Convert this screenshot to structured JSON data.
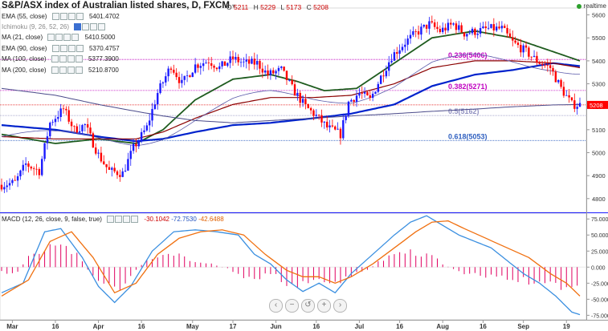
{
  "header": {
    "title": "S&P/ASX index of Australian listed shares, D, FXCM",
    "ohlc": [
      {
        "k": "O",
        "v": "5211"
      },
      {
        "k": "H",
        "v": "5229"
      },
      {
        "k": "L",
        "v": "5173"
      },
      {
        "k": "C",
        "v": "5208"
      }
    ],
    "realtime": "realtime"
  },
  "indicators": [
    {
      "label": "EMA (55, close)",
      "value": "5401.4702",
      "color": "#1f5c1f"
    },
    {
      "label": "Ichimoku (9, 26, 52, 26)",
      "value": "",
      "color": "#888888"
    },
    {
      "label": "MA (21, close)",
      "value": "5410.5000",
      "color": "#1a1a1a"
    },
    {
      "label": "EMA (90, close)",
      "value": "5370.4757",
      "color": "#8b0000"
    },
    {
      "label": "MA (100, close)",
      "value": "5377.3900",
      "color": "#0022cc"
    },
    {
      "label": "MA (200, close)",
      "value": "5210.8700",
      "color": "#1a1a1a"
    }
  ],
  "macd": {
    "label": "MACD (12, 26, close, 9, false, true)",
    "values": [
      {
        "v": "-30.1042",
        "color": "#cc0000"
      },
      {
        "v": "-72.7530",
        "color": "#1f4fbf"
      },
      {
        "v": "-42.6488",
        "color": "#e06000"
      }
    ]
  },
  "chart_data": {
    "type": "candlestick",
    "price_axis": {
      "ticks": [
        4800,
        4900,
        5000,
        5100,
        5200,
        5300,
        5400,
        5500,
        5600
      ],
      "range": [
        4740,
        5630
      ]
    },
    "macd_axis": {
      "ticks": [
        "75.000",
        "50.000",
        "25.000",
        "0.000",
        "-25.000",
        "-50.000",
        "-75.000"
      ],
      "tick_values": [
        75,
        50,
        25,
        0,
        -25,
        -50,
        -75
      ],
      "range": [
        -82,
        84
      ]
    },
    "x_labels": [
      "Mar",
      "16",
      "Apr",
      "16",
      "May",
      "17",
      "Jun",
      "16",
      "Jul",
      "16",
      "Aug",
      "16",
      "Sep",
      "19"
    ],
    "x_label_index": [
      4,
      20,
      36,
      52,
      71,
      86,
      102,
      117,
      133,
      148,
      164,
      179,
      194,
      210
    ],
    "last_price_label": "5208",
    "fibonacci": [
      {
        "label": "0.236(5406)",
        "price": 5406,
        "color": "#c000c0"
      },
      {
        "label": "0.382(5271)",
        "price": 5271,
        "color": "#c000c0"
      },
      {
        "label": "0.5(5162)",
        "price": 5162,
        "color": "#9090c0"
      },
      {
        "label": "0.618(5053)",
        "price": 5053,
        "color": "#3060c0"
      }
    ],
    "candles_close_anchor": [
      [
        0,
        4860
      ],
      [
        5,
        4870
      ],
      [
        9,
        4950
      ],
      [
        14,
        4920
      ],
      [
        18,
        5130
      ],
      [
        23,
        5190
      ],
      [
        27,
        5100
      ],
      [
        31,
        5120
      ],
      [
        36,
        4990
      ],
      [
        40,
        4920
      ],
      [
        45,
        4910
      ],
      [
        49,
        5020
      ],
      [
        54,
        5110
      ],
      [
        58,
        5260
      ],
      [
        63,
        5380
      ],
      [
        67,
        5300
      ],
      [
        72,
        5380
      ],
      [
        77,
        5400
      ],
      [
        81,
        5370
      ],
      [
        86,
        5410
      ],
      [
        90,
        5390
      ],
      [
        95,
        5390
      ],
      [
        99,
        5340
      ],
      [
        104,
        5360
      ],
      [
        108,
        5280
      ],
      [
        113,
        5200
      ],
      [
        117,
        5160
      ],
      [
        121,
        5110
      ],
      [
        126,
        5080
      ],
      [
        129,
        5220
      ],
      [
        133,
        5260
      ],
      [
        137,
        5230
      ],
      [
        141,
        5330
      ],
      [
        145,
        5420
      ],
      [
        150,
        5480
      ],
      [
        154,
        5520
      ],
      [
        159,
        5560
      ],
      [
        163,
        5530
      ],
      [
        168,
        5560
      ],
      [
        172,
        5520
      ],
      [
        177,
        5530
      ],
      [
        181,
        5540
      ],
      [
        186,
        5540
      ],
      [
        190,
        5480
      ],
      [
        195,
        5440
      ],
      [
        199,
        5400
      ],
      [
        204,
        5370
      ],
      [
        208,
        5280
      ],
      [
        212,
        5210
      ],
      [
        215,
        5208
      ]
    ],
    "series": [
      {
        "name": "EMA (55, close)",
        "color": "#1f5c1f",
        "values": [
          [
            0,
            5080
          ],
          [
            20,
            5040
          ],
          [
            36,
            5060
          ],
          [
            50,
            5040
          ],
          [
            60,
            5100
          ],
          [
            72,
            5230
          ],
          [
            86,
            5320
          ],
          [
            100,
            5340
          ],
          [
            110,
            5310
          ],
          [
            120,
            5270
          ],
          [
            132,
            5280
          ],
          [
            146,
            5390
          ],
          [
            160,
            5500
          ],
          [
            176,
            5530
          ],
          [
            190,
            5500
          ],
          [
            205,
            5440
          ],
          [
            215,
            5400
          ]
        ]
      },
      {
        "name": "MA (100, close)",
        "color": "#0022cc",
        "values": [
          [
            0,
            5120
          ],
          [
            20,
            5100
          ],
          [
            36,
            5070
          ],
          [
            50,
            5050
          ],
          [
            60,
            5060
          ],
          [
            72,
            5090
          ],
          [
            86,
            5120
          ],
          [
            100,
            5130
          ],
          [
            116,
            5150
          ],
          [
            130,
            5170
          ],
          [
            146,
            5210
          ],
          [
            160,
            5290
          ],
          [
            176,
            5340
          ],
          [
            190,
            5360
          ],
          [
            205,
            5390
          ],
          [
            215,
            5377
          ]
        ]
      },
      {
        "name": "EMA (90, close)",
        "color": "#8b0000",
        "values": [
          [
            0,
            5070
          ],
          [
            20,
            5060
          ],
          [
            36,
            5060
          ],
          [
            50,
            5060
          ],
          [
            60,
            5090
          ],
          [
            72,
            5150
          ],
          [
            86,
            5210
          ],
          [
            100,
            5240
          ],
          [
            116,
            5240
          ],
          [
            130,
            5250
          ],
          [
            146,
            5300
          ],
          [
            160,
            5370
          ],
          [
            176,
            5400
          ],
          [
            190,
            5400
          ],
          [
            205,
            5390
          ],
          [
            215,
            5370
          ]
        ]
      },
      {
        "name": "MA (200, close)",
        "color": "#4a4a8a",
        "values": [
          [
            0,
            5280
          ],
          [
            20,
            5250
          ],
          [
            36,
            5210
          ],
          [
            50,
            5180
          ],
          [
            60,
            5160
          ],
          [
            72,
            5140
          ],
          [
            86,
            5130
          ],
          [
            100,
            5140
          ],
          [
            116,
            5150
          ],
          [
            130,
            5160
          ],
          [
            146,
            5170
          ],
          [
            160,
            5180
          ],
          [
            176,
            5190
          ],
          [
            190,
            5200
          ],
          [
            205,
            5208
          ],
          [
            215,
            5210
          ]
        ]
      }
    ],
    "macd_series": {
      "histogram_anchor": [
        [
          0,
          -8
        ],
        [
          5,
          -12
        ],
        [
          10,
          15
        ],
        [
          16,
          32
        ],
        [
          22,
          38
        ],
        [
          28,
          20
        ],
        [
          32,
          -5
        ],
        [
          36,
          -22
        ],
        [
          40,
          -34
        ],
        [
          44,
          -32
        ],
        [
          48,
          -12
        ],
        [
          54,
          12
        ],
        [
          60,
          25
        ],
        [
          66,
          20
        ],
        [
          72,
          8
        ],
        [
          78,
          5
        ],
        [
          84,
          -2
        ],
        [
          90,
          -15
        ],
        [
          96,
          -18
        ],
        [
          100,
          -10
        ],
        [
          106,
          -25
        ],
        [
          112,
          -30
        ],
        [
          118,
          -25
        ],
        [
          122,
          -28
        ],
        [
          128,
          -20
        ],
        [
          132,
          -10
        ],
        [
          136,
          -5
        ],
        [
          140,
          8
        ],
        [
          146,
          22
        ],
        [
          150,
          30
        ],
        [
          156,
          22
        ],
        [
          160,
          18
        ],
        [
          164,
          5
        ],
        [
          170,
          -8
        ],
        [
          176,
          -12
        ],
        [
          182,
          -15
        ],
        [
          188,
          -18
        ],
        [
          194,
          -22
        ],
        [
          200,
          -25
        ],
        [
          206,
          -35
        ],
        [
          210,
          -40
        ],
        [
          215,
          -38
        ]
      ],
      "macd_anchor": [
        [
          0,
          -40
        ],
        [
          8,
          -25
        ],
        [
          16,
          55
        ],
        [
          22,
          60
        ],
        [
          30,
          15
        ],
        [
          36,
          -30
        ],
        [
          42,
          -55
        ],
        [
          48,
          -30
        ],
        [
          56,
          25
        ],
        [
          64,
          55
        ],
        [
          72,
          58
        ],
        [
          80,
          55
        ],
        [
          88,
          50
        ],
        [
          94,
          20
        ],
        [
          100,
          5
        ],
        [
          106,
          -20
        ],
        [
          112,
          -38
        ],
        [
          118,
          -25
        ],
        [
          124,
          -40
        ],
        [
          130,
          -10
        ],
        [
          138,
          20
        ],
        [
          146,
          50
        ],
        [
          152,
          70
        ],
        [
          158,
          80
        ],
        [
          164,
          65
        ],
        [
          170,
          50
        ],
        [
          176,
          40
        ],
        [
          182,
          30
        ],
        [
          188,
          10
        ],
        [
          194,
          -10
        ],
        [
          200,
          -25
        ],
        [
          206,
          -45
        ],
        [
          212,
          -70
        ],
        [
          215,
          -74
        ]
      ],
      "signal_anchor": [
        [
          0,
          -45
        ],
        [
          10,
          -20
        ],
        [
          18,
          40
        ],
        [
          26,
          55
        ],
        [
          34,
          15
        ],
        [
          42,
          -40
        ],
        [
          50,
          -25
        ],
        [
          58,
          20
        ],
        [
          66,
          45
        ],
        [
          74,
          55
        ],
        [
          82,
          58
        ],
        [
          90,
          50
        ],
        [
          98,
          20
        ],
        [
          106,
          -5
        ],
        [
          112,
          -15
        ],
        [
          118,
          -15
        ],
        [
          124,
          -25
        ],
        [
          130,
          -15
        ],
        [
          138,
          5
        ],
        [
          146,
          30
        ],
        [
          154,
          55
        ],
        [
          160,
          70
        ],
        [
          166,
          72
        ],
        [
          172,
          60
        ],
        [
          180,
          45
        ],
        [
          188,
          30
        ],
        [
          196,
          15
        ],
        [
          204,
          -10
        ],
        [
          210,
          -25
        ],
        [
          215,
          -45
        ]
      ]
    }
  }
}
